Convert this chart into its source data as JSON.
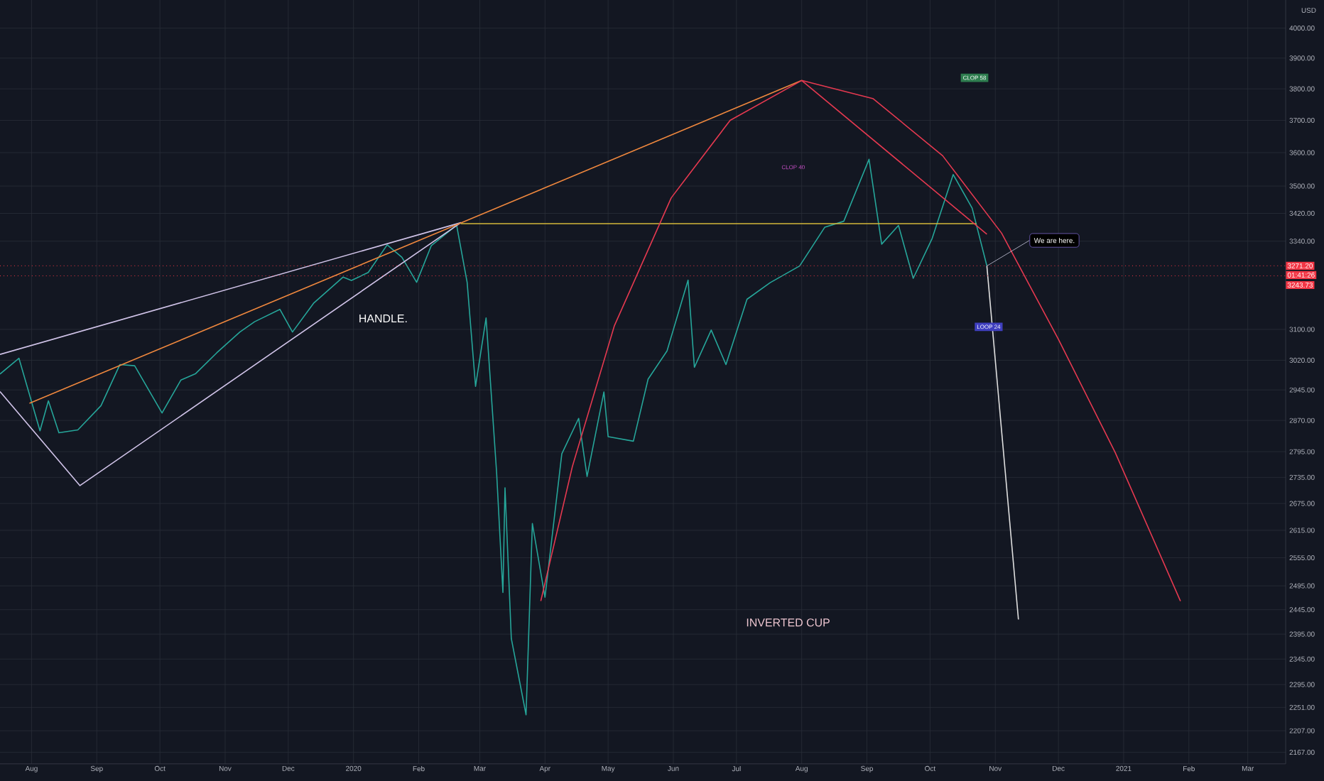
{
  "chart_data": {
    "type": "line",
    "ylabel": "USD",
    "log": "y",
    "grid": true,
    "xlim": [
      "2019-07-17",
      "2021-03-19"
    ],
    "xticks": [
      {
        "value": "2019-08-01",
        "label": "Aug"
      },
      {
        "value": "2019-09-01",
        "label": "Sep"
      },
      {
        "value": "2019-10-01",
        "label": "Oct"
      },
      {
        "value": "2019-11-01",
        "label": "Nov"
      },
      {
        "value": "2019-12-01",
        "label": "Dec"
      },
      {
        "value": "2020-01-01",
        "label": "2020"
      },
      {
        "value": "2020-02-01",
        "label": "Feb"
      },
      {
        "value": "2020-03-01",
        "label": "Mar"
      },
      {
        "value": "2020-04-01",
        "label": "Apr"
      },
      {
        "value": "2020-05-01",
        "label": "May"
      },
      {
        "value": "2020-06-01",
        "label": "Jun"
      },
      {
        "value": "2020-07-01",
        "label": "Jul"
      },
      {
        "value": "2020-08-01",
        "label": "Aug"
      },
      {
        "value": "2020-09-01",
        "label": "Sep"
      },
      {
        "value": "2020-10-01",
        "label": "Oct"
      },
      {
        "value": "2020-11-01",
        "label": "Nov"
      },
      {
        "value": "2020-12-01",
        "label": "Dec"
      },
      {
        "value": "2021-01-01",
        "label": "2021"
      },
      {
        "value": "2021-02-01",
        "label": "Feb"
      },
      {
        "value": "2021-03-01",
        "label": "Mar"
      }
    ],
    "ylim": [
      2146,
      4097
    ],
    "yticks": [
      {
        "value": 4000,
        "label": "4000.00"
      },
      {
        "value": 3900,
        "label": "3900.00"
      },
      {
        "value": 3800,
        "label": "3800.00"
      },
      {
        "value": 3700,
        "label": "3700.00"
      },
      {
        "value": 3600,
        "label": "3600.00"
      },
      {
        "value": 3500,
        "label": "3500.00"
      },
      {
        "value": 3420,
        "label": "3420.00"
      },
      {
        "value": 3340,
        "label": "3340.00"
      },
      {
        "value": 3100,
        "label": "3100.00"
      },
      {
        "value": 3020,
        "label": "3020.00"
      },
      {
        "value": 2945,
        "label": "2945.00"
      },
      {
        "value": 2870,
        "label": "2870.00"
      },
      {
        "value": 2795,
        "label": "2795.00"
      },
      {
        "value": 2735,
        "label": "2735.00"
      },
      {
        "value": 2675,
        "label": "2675.00"
      },
      {
        "value": 2615,
        "label": "2615.00"
      },
      {
        "value": 2555,
        "label": "2555.00"
      },
      {
        "value": 2495,
        "label": "2495.00"
      },
      {
        "value": 2445,
        "label": "2445.00"
      },
      {
        "value": 2395,
        "label": "2395.00"
      },
      {
        "value": 2345,
        "label": "2345.00"
      },
      {
        "value": 2295,
        "label": "2295.00"
      },
      {
        "value": 2251,
        "label": "2251.00"
      },
      {
        "value": 2207,
        "label": "2207.00"
      },
      {
        "value": 2167,
        "label": "2167.00"
      }
    ],
    "series": [
      {
        "color": "#26a69a",
        "x": [
          "2019-07-17",
          "2019-07-26",
          "2019-08-05",
          "2019-08-09",
          "2019-08-14",
          "2019-08-23",
          "2019-09-03",
          "2019-09-12",
          "2019-09-19",
          "2019-10-02",
          "2019-10-11",
          "2019-10-18",
          "2019-10-28",
          "2019-11-08",
          "2019-11-15",
          "2019-11-27",
          "2019-12-03",
          "2019-12-13",
          "2019-12-27",
          "2019-12-31",
          "2020-01-08",
          "2020-01-17",
          "2020-01-24",
          "2020-01-31",
          "2020-02-07",
          "2020-02-19",
          "2020-02-24",
          "2020-02-28",
          "2020-03-04",
          "2020-03-09",
          "2020-03-12",
          "2020-03-13",
          "2020-03-16",
          "2020-03-23",
          "2020-03-26",
          "2020-04-01",
          "2020-04-09",
          "2020-04-17",
          "2020-04-21",
          "2020-04-29",
          "2020-05-01",
          "2020-05-13",
          "2020-05-20",
          "2020-05-29",
          "2020-06-08",
          "2020-06-11",
          "2020-06-19",
          "2020-06-26",
          "2020-07-06",
          "2020-07-17",
          "2020-07-31",
          "2020-08-12",
          "2020-08-21",
          "2020-09-02",
          "2020-09-08",
          "2020-09-16",
          "2020-09-23",
          "2020-10-02",
          "2020-10-12",
          "2020-10-21",
          "2020-10-28"
        ],
        "values": [
          2985,
          3025,
          2845,
          2918,
          2840,
          2847,
          2906,
          3009,
          3006,
          2888,
          2970,
          2986,
          3039,
          3093,
          3120,
          3153,
          3093,
          3169,
          3240,
          3231,
          3253,
          3330,
          3295,
          3226,
          3328,
          3386,
          3226,
          2954,
          3130,
          2747,
          2481,
          2711,
          2386,
          2237,
          2630,
          2471,
          2790,
          2875,
          2737,
          2940,
          2831,
          2820,
          2972,
          3044,
          3232,
          3002,
          3098,
          3009,
          3180,
          3225,
          3271,
          3380,
          3397,
          3580,
          3332,
          3385,
          3237,
          3348,
          3534,
          3435,
          3271
        ]
      },
      {
        "color": "#d1c4e9",
        "x": [
          "2019-07-17",
          "2020-02-21",
          "2019-08-24",
          "2019-07-17"
        ],
        "values": [
          3035,
          3393,
          2716,
          2941
        ]
      },
      {
        "color": "#f0883e",
        "x": [
          "2019-07-31",
          "2020-08-01"
        ],
        "values": [
          2912,
          3827
        ]
      },
      {
        "color": "#d4b83a",
        "x": [
          "2020-02-21",
          "2020-10-23"
        ],
        "values": [
          3390,
          3390
        ]
      },
      {
        "color": "#e53950",
        "x": [
          "2020-03-30",
          "2020-04-14",
          "2020-05-04",
          "2020-05-31",
          "2020-06-28",
          "2020-08-01",
          "2020-09-04",
          "2020-10-07",
          "2020-11-04",
          "2020-12-01",
          "2020-12-28",
          "2021-01-28"
        ],
        "values": [
          2463,
          2760,
          3110,
          3465,
          3700,
          3827,
          3768,
          3591,
          3363,
          3074,
          2793,
          2463
        ]
      },
      {
        "color": "#e53950",
        "x": [
          "2020-08-01",
          "2020-10-28"
        ],
        "values": [
          3827,
          3360
        ]
      },
      {
        "color": "#e0e0e0",
        "x": [
          "2020-10-28",
          "2020-11-12"
        ],
        "values": [
          3271,
          2425
        ]
      }
    ],
    "ref_lines": [
      {
        "axis": "y",
        "value": 3271.2,
        "label": "3271.20",
        "color": "#f23645",
        "line_style": "dotted"
      },
      {
        "axis": "y",
        "value": 3243.73,
        "label": "3243.73",
        "color": "#f23645",
        "line_style": "dotted"
      }
    ],
    "annotations": [
      "HANDLE.",
      "INVERTED CUP",
      "CLOP 40",
      "CLOP 58",
      "LOOP 24",
      "01:41:26",
      {
        "text": "We are here.",
        "x": "2020-10-28",
        "y": 3271
      }
    ]
  }
}
